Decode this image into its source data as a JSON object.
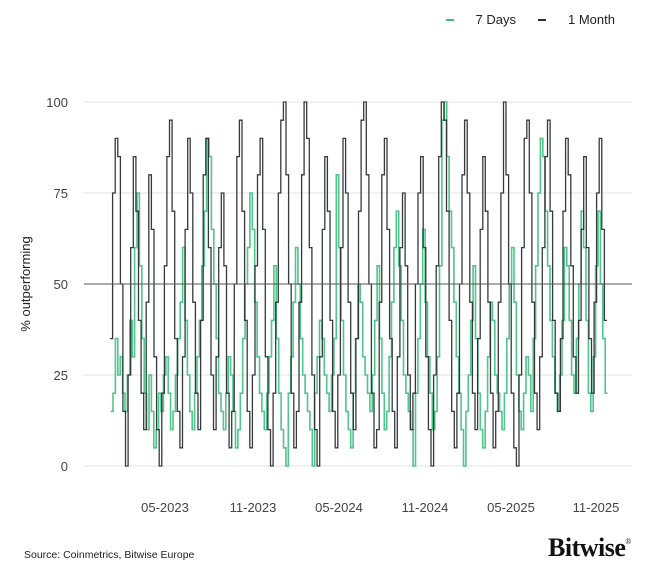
{
  "legend": [
    {
      "label": "7 Days",
      "color": "#3dbf7f"
    },
    {
      "label": "1 Month",
      "color": "#2b2f33"
    }
  ],
  "axis": {
    "ylabel": "% outperforming",
    "yticks": [
      "100",
      "75",
      "50",
      "25",
      "0"
    ],
    "xticks": [
      "05-2023",
      "11-2023",
      "05-2024",
      "11-2024",
      "05-2025",
      "11-2025"
    ]
  },
  "source": "Source: Coinmetrics, Bitwise Europe",
  "logo": {
    "name": "Bitwise",
    "mark": "®"
  },
  "chart_data": {
    "type": "line",
    "style": "step",
    "title": "",
    "xlabel": "",
    "ylabel": "% outperforming",
    "ylim": [
      0,
      100
    ],
    "xlim": [
      "2022-12",
      "2025-12"
    ],
    "x_tick_labels": [
      "05-2023",
      "11-2023",
      "05-2024",
      "11-2024",
      "05-2025",
      "11-2025"
    ],
    "y_tick_labels": [
      0,
      25,
      50,
      75,
      100
    ],
    "reference_line": 50,
    "grid": true,
    "legend_position": "top-right",
    "series": [
      {
        "name": "7 Days",
        "color": "#3dbf7f",
        "values": [
          15,
          20,
          35,
          25,
          30,
          20,
          15,
          25,
          40,
          30,
          60,
          75,
          55,
          35,
          20,
          10,
          25,
          15,
          5,
          10,
          20,
          15,
          25,
          30,
          20,
          10,
          15,
          25,
          35,
          45,
          60,
          40,
          25,
          15,
          10,
          20,
          30,
          40,
          55,
          70,
          90,
          85,
          65,
          50,
          35,
          20,
          15,
          10,
          20,
          30,
          25,
          15,
          5,
          10,
          20,
          35,
          50,
          60,
          75,
          65,
          45,
          30,
          20,
          15,
          10,
          20,
          30,
          40,
          55,
          35,
          20,
          10,
          5,
          0,
          20,
          30,
          45,
          60,
          50,
          35,
          25,
          20,
          15,
          10,
          0,
          20,
          30,
          40,
          35,
          25,
          20,
          15,
          25,
          35,
          80,
          60,
          40,
          25,
          15,
          10,
          5,
          20,
          35,
          50,
          45,
          30,
          25,
          20,
          15,
          25,
          40,
          55,
          35,
          20,
          10,
          15,
          30,
          45,
          60,
          70,
          55,
          40,
          25,
          20,
          15,
          10,
          0,
          20,
          35,
          50,
          65,
          45,
          30,
          20,
          10,
          15,
          30,
          55,
          95,
          100,
          85,
          70,
          60,
          45,
          30,
          20,
          10,
          0,
          15,
          25,
          40,
          55,
          35,
          20,
          10,
          5,
          15,
          30,
          45,
          40,
          25,
          20,
          15,
          10,
          20,
          35,
          50,
          60,
          45,
          25,
          15,
          10,
          20,
          30,
          25,
          15,
          35,
          55,
          75,
          90,
          85,
          70,
          55,
          40,
          30,
          20,
          15,
          25,
          40,
          60,
          55,
          40,
          25,
          20,
          35,
          50,
          70,
          60,
          40,
          20,
          15,
          30,
          55,
          70,
          50,
          35,
          20
        ]
      },
      {
        "name": "1 Month",
        "color": "#2b2f33",
        "values": [
          35,
          75,
          90,
          85,
          50,
          15,
          0,
          25,
          60,
          85,
          70,
          40,
          20,
          10,
          45,
          80,
          65,
          30,
          10,
          0,
          20,
          55,
          85,
          95,
          70,
          35,
          15,
          5,
          30,
          65,
          90,
          75,
          45,
          20,
          10,
          40,
          80,
          90,
          60,
          25,
          10,
          30,
          60,
          75,
          55,
          20,
          5,
          15,
          50,
          85,
          95,
          70,
          40,
          15,
          5,
          25,
          55,
          80,
          90,
          65,
          30,
          10,
          0,
          20,
          45,
          75,
          95,
          100,
          80,
          50,
          20,
          5,
          15,
          45,
          80,
          100,
          90,
          60,
          25,
          10,
          0,
          30,
          65,
          85,
          70,
          40,
          15,
          5,
          25,
          60,
          90,
          75,
          45,
          20,
          10,
          35,
          70,
          95,
          100,
          80,
          50,
          20,
          5,
          10,
          45,
          80,
          90,
          65,
          35,
          15,
          5,
          30,
          60,
          75,
          55,
          25,
          10,
          20,
          50,
          75,
          85,
          60,
          30,
          10,
          0,
          25,
          55,
          85,
          100,
          95,
          70,
          40,
          15,
          5,
          20,
          50,
          80,
          95,
          75,
          45,
          20,
          10,
          35,
          65,
          85,
          70,
          45,
          20,
          5,
          15,
          45,
          75,
          100,
          80,
          50,
          20,
          5,
          0,
          25,
          60,
          90,
          95,
          75,
          45,
          20,
          10,
          30,
          60,
          85,
          95,
          70,
          40,
          20,
          15,
          35,
          70,
          90,
          80,
          55,
          30,
          20,
          40,
          65,
          85,
          60,
          35,
          20,
          45,
          75,
          90,
          65,
          40
        ]
      }
    ]
  }
}
